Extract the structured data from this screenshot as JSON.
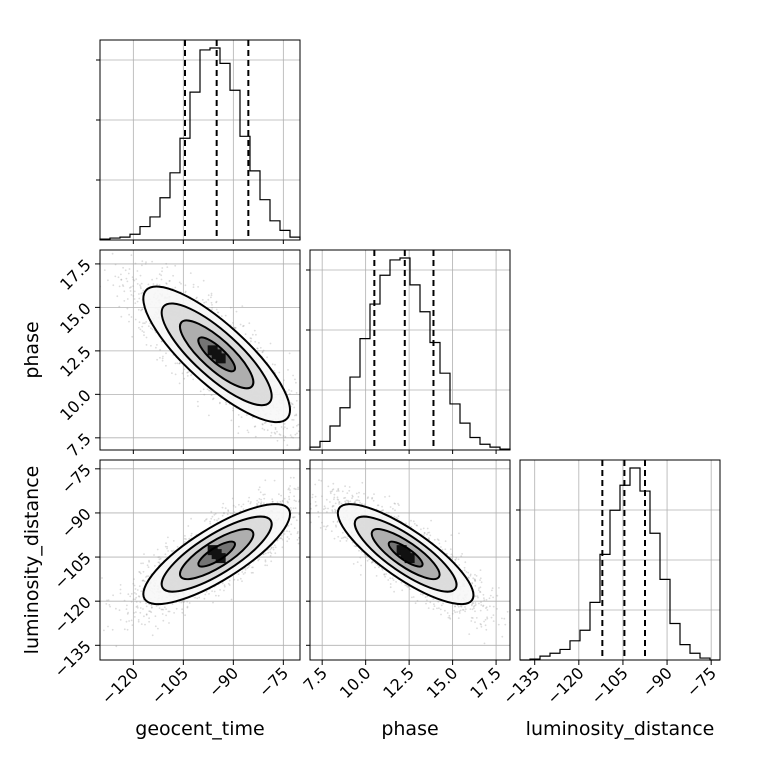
{
  "chart_data": {
    "type": "corner",
    "parameters": [
      "geocent_time",
      "phase",
      "luminosity_distance"
    ],
    "axes": {
      "geocent_time": {
        "label": "geocent_time",
        "range": [
          -130,
          -70
        ],
        "ticks": [
          -120,
          -105,
          -90,
          -75
        ],
        "tick_labels": [
          "−120",
          "−105",
          "−90",
          "−75"
        ]
      },
      "phase": {
        "label": "phase",
        "range": [
          6.8,
          18.3
        ],
        "ticks": [
          7.5,
          10.0,
          12.5,
          15.0,
          17.5
        ],
        "tick_labels": [
          "7.5",
          "10.0",
          "12.5",
          "15.0",
          "17.5"
        ]
      },
      "luminosity_distance": {
        "label": "luminosity_distance",
        "range": [
          -140,
          -72
        ],
        "ticks": [
          -135,
          -120,
          -105,
          -90,
          -75
        ],
        "tick_labels": [
          "−135",
          "−120",
          "−105",
          "−90",
          "−75"
        ]
      }
    },
    "histograms": [
      {
        "parameter": "geocent_time",
        "bin_edges": [
          -130,
          -127,
          -124,
          -121,
          -118,
          -115,
          -112,
          -109,
          -106,
          -103,
          -100,
          -97,
          -94,
          -91,
          -88,
          -85,
          -82,
          -79,
          -76,
          -73,
          -70
        ],
        "counts": [
          0.5,
          1,
          1.5,
          3,
          7,
          12,
          22,
          35,
          53,
          77,
          99,
          100,
          92,
          78,
          54,
          36,
          21,
          10,
          5,
          1.5
        ],
        "quantiles": [
          -104.5,
          -95.0,
          -85.5
        ]
      },
      {
        "parameter": "phase",
        "bin_edges": [
          6.8,
          7.375,
          7.95,
          8.525,
          9.1,
          9.675,
          10.25,
          10.825,
          11.4,
          11.975,
          12.55,
          13.125,
          13.7,
          14.275,
          14.85,
          15.425,
          16.0,
          16.575,
          17.15,
          17.725,
          18.3
        ],
        "counts": [
          1.5,
          4.5,
          12.5,
          22,
          38,
          58,
          76,
          91,
          99,
          100,
          86,
          72,
          56,
          40,
          24,
          14,
          6.5,
          3,
          1.5,
          0.5
        ],
        "quantiles": [
          10.5,
          12.25,
          13.9
        ]
      },
      {
        "parameter": "luminosity_distance",
        "bin_edges": [
          -140,
          -136.6,
          -133.2,
          -129.8,
          -126.4,
          -123.0,
          -119.6,
          -116.2,
          -112.8,
          -109.4,
          -106.0,
          -102.6,
          -99.2,
          -95.8,
          -92.4,
          -89.0,
          -85.6,
          -82.2,
          -78.8,
          -75.4,
          -72
        ],
        "counts": [
          0,
          0.5,
          2,
          3.5,
          5.5,
          10,
          15.5,
          30,
          55,
          78,
          91,
          100,
          88,
          66,
          42,
          19,
          8,
          3.5,
          1,
          0
        ],
        "quantiles": [
          -112,
          -104.5,
          -97.5
        ]
      }
    ],
    "density_2d": [
      {
        "x": "geocent_time",
        "y": "phase",
        "mean": [
          -95,
          12.3
        ],
        "sd": [
          11,
          1.95
        ],
        "correlation": -0.82,
        "n_samples": 2500
      },
      {
        "x": "geocent_time",
        "y": "luminosity_distance",
        "mean": [
          -95,
          -104
        ],
        "sd": [
          11,
          8.5
        ],
        "correlation": 0.8,
        "n_samples": 2500
      },
      {
        "x": "phase",
        "y": "luminosity_distance",
        "mean": [
          12.3,
          -104
        ],
        "sd": [
          1.95,
          8.5
        ],
        "correlation": -0.82,
        "n_samples": 2500
      }
    ],
    "contour_levels_sigma": [
      0.5,
      1,
      1.5,
      2
    ],
    "grid": true
  }
}
